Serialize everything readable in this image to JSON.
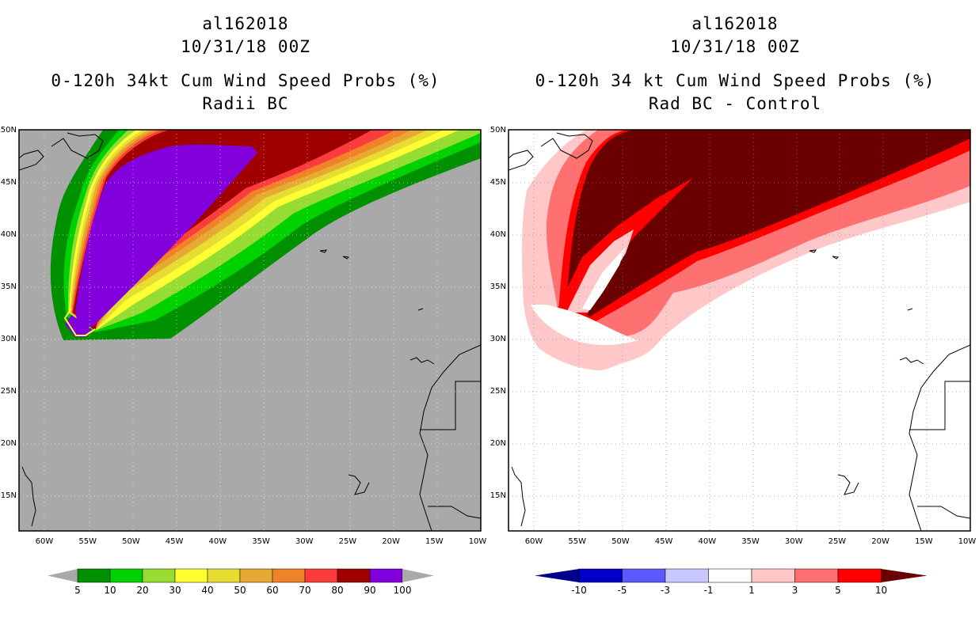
{
  "left_panel": {
    "storm_id": "al162018",
    "datetime": "10/31/18 00Z",
    "title": "0-120h 34kt Cum Wind Speed Probs (%)",
    "subtitle": "Radii BC",
    "background_color": "#a9a9a9",
    "colorbar": {
      "labels": [
        "5",
        "10",
        "20",
        "30",
        "40",
        "50",
        "60",
        "70",
        "80",
        "90",
        "100"
      ],
      "colors": [
        "#009000",
        "#00d200",
        "#96dc32",
        "#ffff32",
        "#e6dc32",
        "#e6aa32",
        "#f08228",
        "#fa3c3c",
        "#a00000",
        "#8200dc"
      ],
      "extend_color": "#a9a9a9"
    }
  },
  "right_panel": {
    "storm_id": "al162018",
    "datetime": "10/31/18 00Z",
    "title": "0-120h 34 kt Cum Wind Speed Probs (%)",
    "subtitle": "Rad BC - Control",
    "background_color": "#ffffff",
    "colorbar": {
      "labels": [
        "-10",
        "-5",
        "-3",
        "-1",
        "1",
        "3",
        "5",
        "10"
      ],
      "colors": [
        "#0000c8",
        "#5a5aff",
        "#c8c8ff",
        "#ffffff",
        "#ffc8c8",
        "#ff7070",
        "#ff0000"
      ],
      "low_color": "#00008b",
      "high_color": "#6a0000"
    }
  },
  "map": {
    "lat_labels": [
      "50N",
      "45N",
      "40N",
      "35N",
      "30N",
      "25N",
      "20N",
      "15N"
    ],
    "lon_labels": [
      "60W",
      "55W",
      "50W",
      "45W",
      "40W",
      "35W",
      "30W",
      "25W",
      "20W",
      "15W",
      "10W"
    ]
  }
}
